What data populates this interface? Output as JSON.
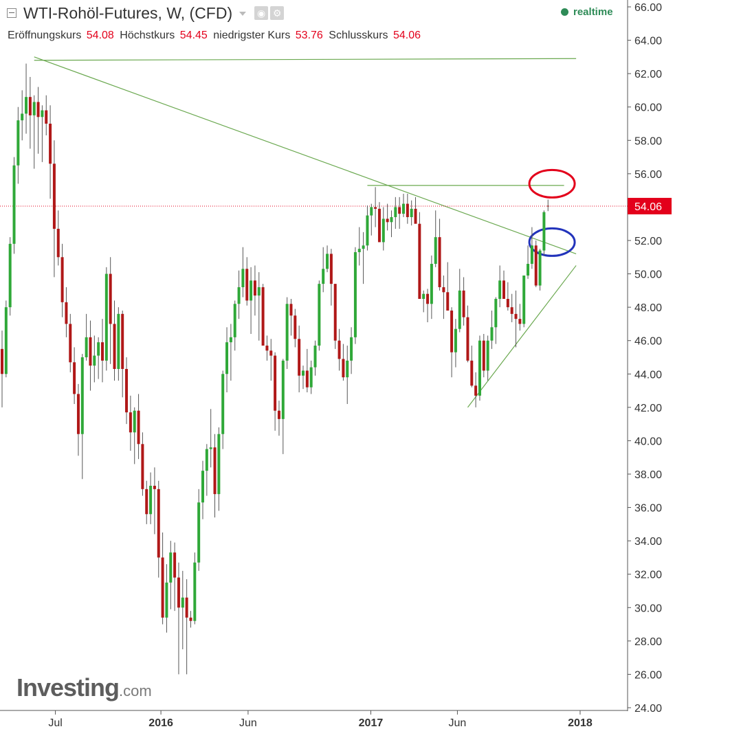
{
  "header": {
    "title": "WTI-Rohöl-Futures, W, (CFD)",
    "realtime_label": "realtime",
    "ohlc": {
      "open_label": "Eröffnungskurs",
      "open_value": "54.08",
      "high_label": "Höchstkurs",
      "high_value": "54.45",
      "low_label": "niedrigster Kurs",
      "low_value": "53.76",
      "close_label": "Schlusskurs",
      "close_value": "54.06"
    }
  },
  "logo": {
    "main": "Investing",
    "suffix": ".com"
  },
  "colors": {
    "up": "#2fa838",
    "down": "#b01818",
    "wick": "#555555",
    "trendline": "#6aa84f",
    "price_line": "#e3001b",
    "price_tag_bg": "#e3001b",
    "circle_red": "#e3001b",
    "circle_blue": "#2233bb",
    "axis": "#555555",
    "realtime": "#2e8b57"
  },
  "chart_data": {
    "type": "candlestick",
    "instrument": "WTI-Rohöl-Futures",
    "timeframe": "W",
    "yaxis": {
      "min": 24,
      "max": 66,
      "ticks": [
        "66.00",
        "64.00",
        "62.00",
        "60.00",
        "58.00",
        "56.00",
        "54.00",
        "52.00",
        "50.00",
        "48.00",
        "46.00",
        "44.00",
        "42.00",
        "40.00",
        "38.00",
        "36.00",
        "34.00",
        "32.00",
        "30.00",
        "28.00",
        "26.00",
        "24.00"
      ]
    },
    "xaxis": {
      "start_week": "2015-03-30",
      "end_week": "2018-01-29",
      "labels": [
        {
          "text": "Jul",
          "date": "2015-07-01",
          "bold": false
        },
        {
          "text": "2016",
          "date": "2016-01-01",
          "bold": true
        },
        {
          "text": "Jun",
          "date": "2016-06-01",
          "bold": false
        },
        {
          "text": "2017",
          "date": "2017-01-01",
          "bold": true
        },
        {
          "text": "Jun",
          "date": "2017-06-01",
          "bold": false
        },
        {
          "text": "2018",
          "date": "2018-01-01",
          "bold": true
        }
      ]
    },
    "last_price": "54.06",
    "candles": [
      [
        45.5,
        46.6,
        42.0,
        44.0
      ],
      [
        44.0,
        48.4,
        43.8,
        48.0
      ],
      [
        48.0,
        52.2,
        47.5,
        51.8
      ],
      [
        51.8,
        57.0,
        51.2,
        56.5
      ],
      [
        56.5,
        60.0,
        55.4,
        59.2
      ],
      [
        59.2,
        61.0,
        58.0,
        59.6
      ],
      [
        59.6,
        62.6,
        58.4,
        60.6
      ],
      [
        60.6,
        61.8,
        57.5,
        59.5
      ],
      [
        59.5,
        60.7,
        56.3,
        60.3
      ],
      [
        60.3,
        61.2,
        57.2,
        59.4
      ],
      [
        59.4,
        60.1,
        56.7,
        59.8
      ],
      [
        59.8,
        60.7,
        58.3,
        59.0
      ],
      [
        59.0,
        60.1,
        54.5,
        56.6
      ],
      [
        56.6,
        58.0,
        49.8,
        52.7
      ],
      [
        52.7,
        53.8,
        50.5,
        51.0
      ],
      [
        51.0,
        51.8,
        47.4,
        48.3
      ],
      [
        48.3,
        49.2,
        46.2,
        47.0
      ],
      [
        47.0,
        47.6,
        44.1,
        44.7
      ],
      [
        44.7,
        45.6,
        42.2,
        42.8
      ],
      [
        42.8,
        43.4,
        39.1,
        40.4
      ],
      [
        40.4,
        45.2,
        37.7,
        45.0
      ],
      [
        45.0,
        47.6,
        44.8,
        46.2
      ],
      [
        46.2,
        47.2,
        43.0,
        44.5
      ],
      [
        44.5,
        46.3,
        43.5,
        45.1
      ],
      [
        45.1,
        46.2,
        43.7,
        45.9
      ],
      [
        45.9,
        47.3,
        43.5,
        44.8
      ],
      [
        44.8,
        50.4,
        44.2,
        50.0
      ],
      [
        50.0,
        51.0,
        44.6,
        47.0
      ],
      [
        47.0,
        48.4,
        43.6,
        44.3
      ],
      [
        44.3,
        48.0,
        43.6,
        47.6
      ],
      [
        47.6,
        47.8,
        42.6,
        44.3
      ],
      [
        44.3,
        45.0,
        41.0,
        41.7
      ],
      [
        41.7,
        42.7,
        39.4,
        40.5
      ],
      [
        40.5,
        42.0,
        38.6,
        41.8
      ],
      [
        41.8,
        42.8,
        38.9,
        39.8
      ],
      [
        39.8,
        40.5,
        36.7,
        37.1
      ],
      [
        37.1,
        37.6,
        35.0,
        35.6
      ],
      [
        35.6,
        38.1,
        35.0,
        37.3
      ],
      [
        37.3,
        38.4,
        34.4,
        37.1
      ],
      [
        37.1,
        37.6,
        31.8,
        33.0
      ],
      [
        33.0,
        34.5,
        29.0,
        29.4
      ],
      [
        29.4,
        32.6,
        28.5,
        31.5
      ],
      [
        31.5,
        34.0,
        29.9,
        33.3
      ],
      [
        33.3,
        33.9,
        29.8,
        31.8
      ],
      [
        31.8,
        32.7,
        26.0,
        30.0
      ],
      [
        30.0,
        32.2,
        27.5,
        30.6
      ],
      [
        30.6,
        31.7,
        26.0,
        29.4
      ],
      [
        29.4,
        29.8,
        28.8,
        29.2
      ],
      [
        29.2,
        33.3,
        29.0,
        32.7
      ],
      [
        32.7,
        37.1,
        32.2,
        36.3
      ],
      [
        36.3,
        38.8,
        35.3,
        38.2
      ],
      [
        38.2,
        39.8,
        36.7,
        39.5
      ],
      [
        39.5,
        41.9,
        38.4,
        39.6
      ],
      [
        39.6,
        40.4,
        35.4,
        36.8
      ],
      [
        36.8,
        40.8,
        35.8,
        40.4
      ],
      [
        40.4,
        44.2,
        39.5,
        44.0
      ],
      [
        44.0,
        46.8,
        42.9,
        45.9
      ],
      [
        45.9,
        47.0,
        43.6,
        46.2
      ],
      [
        46.2,
        48.4,
        45.4,
        48.2
      ],
      [
        48.2,
        50.2,
        47.3,
        49.2
      ],
      [
        49.2,
        51.6,
        48.6,
        50.3
      ],
      [
        50.3,
        51.0,
        48.1,
        48.4
      ],
      [
        48.4,
        50.4,
        46.4,
        49.6
      ],
      [
        49.6,
        50.5,
        47.5,
        48.7
      ],
      [
        48.7,
        50.1,
        46.0,
        49.2
      ],
      [
        49.2,
        49.4,
        45.7,
        45.7
      ],
      [
        45.7,
        46.3,
        44.8,
        45.4
      ],
      [
        45.4,
        46.1,
        43.6,
        45.1
      ],
      [
        45.1,
        45.3,
        40.6,
        41.8
      ],
      [
        41.8,
        42.4,
        40.3,
        41.3
      ],
      [
        41.3,
        44.9,
        39.2,
        44.8
      ],
      [
        44.8,
        48.6,
        44.3,
        48.2
      ],
      [
        48.2,
        48.5,
        46.3,
        47.5
      ],
      [
        47.5,
        47.9,
        45.6,
        46.1
      ],
      [
        46.1,
        46.9,
        42.9,
        43.9
      ],
      [
        43.9,
        44.5,
        43.1,
        44.2
      ],
      [
        44.2,
        45.5,
        42.9,
        43.2
      ],
      [
        43.2,
        44.8,
        42.8,
        44.4
      ],
      [
        44.4,
        46.0,
        43.9,
        45.7
      ],
      [
        45.7,
        49.6,
        45.4,
        49.4
      ],
      [
        49.4,
        51.6,
        48.9,
        50.3
      ],
      [
        50.3,
        51.7,
        50.1,
        51.2
      ],
      [
        51.2,
        51.5,
        48.1,
        49.4
      ],
      [
        49.4,
        49.4,
        45.5,
        46.0
      ],
      [
        46.0,
        46.7,
        44.2,
        44.9
      ],
      [
        44.9,
        45.8,
        43.6,
        43.8
      ],
      [
        43.8,
        45.7,
        42.2,
        44.8
      ],
      [
        44.8,
        46.8,
        44.0,
        46.2
      ],
      [
        46.2,
        51.6,
        45.8,
        51.3
      ],
      [
        51.3,
        52.8,
        50.5,
        51.5
      ],
      [
        51.5,
        52.5,
        49.4,
        51.7
      ],
      [
        51.7,
        54.1,
        51.4,
        53.5
      ],
      [
        53.5,
        54.2,
        52.3,
        54.0
      ],
      [
        54.0,
        55.2,
        52.8,
        53.9
      ],
      [
        53.9,
        54.3,
        51.9,
        51.9
      ],
      [
        51.9,
        54.0,
        51.4,
        53.3
      ],
      [
        53.3,
        54.2,
        52.6,
        53.1
      ],
      [
        53.1,
        53.8,
        52.2,
        53.4
      ],
      [
        53.4,
        54.6,
        52.7,
        54.0
      ],
      [
        54.0,
        54.6,
        52.7,
        53.6
      ],
      [
        53.6,
        54.8,
        53.4,
        54.2
      ],
      [
        54.2,
        54.8,
        53.0,
        53.4
      ],
      [
        53.4,
        54.4,
        52.9,
        53.9
      ],
      [
        53.9,
        54.6,
        53.3,
        53.0
      ],
      [
        53.0,
        53.7,
        48.5,
        48.5
      ],
      [
        48.5,
        49.0,
        47.7,
        48.8
      ],
      [
        48.8,
        49.1,
        47.1,
        48.2
      ],
      [
        48.2,
        51.1,
        47.3,
        50.6
      ],
      [
        50.6,
        53.8,
        50.4,
        52.2
      ],
      [
        52.2,
        53.3,
        49.0,
        49.2
      ],
      [
        49.2,
        49.9,
        47.3,
        48.9
      ],
      [
        48.9,
        50.7,
        47.8,
        47.8
      ],
      [
        47.8,
        48.0,
        43.8,
        45.3
      ],
      [
        45.3,
        47.3,
        44.4,
        46.7
      ],
      [
        46.7,
        50.3,
        46.5,
        49.0
      ],
      [
        49.0,
        49.8,
        46.9,
        47.4
      ],
      [
        47.4,
        48.1,
        44.7,
        44.8
      ],
      [
        44.8,
        45.7,
        43.2,
        43.3
      ],
      [
        43.3,
        44.1,
        42.0,
        42.7
      ],
      [
        42.7,
        46.3,
        42.4,
        46.0
      ],
      [
        46.0,
        46.4,
        43.8,
        44.2
      ],
      [
        44.2,
        46.3,
        43.6,
        46.0
      ],
      [
        46.0,
        47.8,
        45.5,
        46.8
      ],
      [
        46.8,
        48.6,
        45.8,
        48.5
      ],
      [
        48.5,
        50.5,
        48.0,
        49.6
      ],
      [
        49.6,
        50.2,
        48.5,
        48.5
      ],
      [
        48.5,
        49.5,
        47.8,
        48.0
      ],
      [
        48.0,
        48.8,
        47.1,
        47.6
      ],
      [
        47.6,
        49.0,
        45.6,
        47.3
      ],
      [
        47.3,
        48.2,
        46.6,
        47.0
      ],
      [
        47.0,
        49.8,
        46.8,
        49.9
      ],
      [
        49.9,
        51.7,
        49.7,
        50.6
      ],
      [
        50.6,
        52.8,
        50.3,
        51.7
      ],
      [
        51.7,
        52.0,
        49.2,
        49.3
      ],
      [
        49.3,
        51.5,
        49.0,
        51.4
      ],
      [
        51.4,
        53.8,
        51.1,
        53.7
      ],
      [
        54.08,
        54.45,
        53.76,
        54.06
      ]
    ],
    "lines": [
      {
        "kind": "horizontal",
        "from": [
          "2015-05-25",
          62.8
        ],
        "to": [
          "2017-12-25",
          62.9
        ]
      },
      {
        "kind": "trend",
        "from": [
          "2015-05-25",
          63.0
        ],
        "to": [
          "2017-12-25",
          51.2
        ]
      },
      {
        "kind": "horizontal",
        "from": [
          "2016-12-26",
          55.3
        ],
        "to": [
          "2017-12-04",
          55.3
        ]
      },
      {
        "kind": "trend",
        "from": [
          "2017-06-19",
          42.0
        ],
        "to": [
          "2017-12-25",
          50.5
        ]
      }
    ],
    "circles": [
      {
        "color": "red",
        "center": [
          "2017-11-13",
          55.4
        ]
      },
      {
        "color": "blue",
        "center": [
          "2017-11-13",
          51.9
        ]
      }
    ]
  }
}
